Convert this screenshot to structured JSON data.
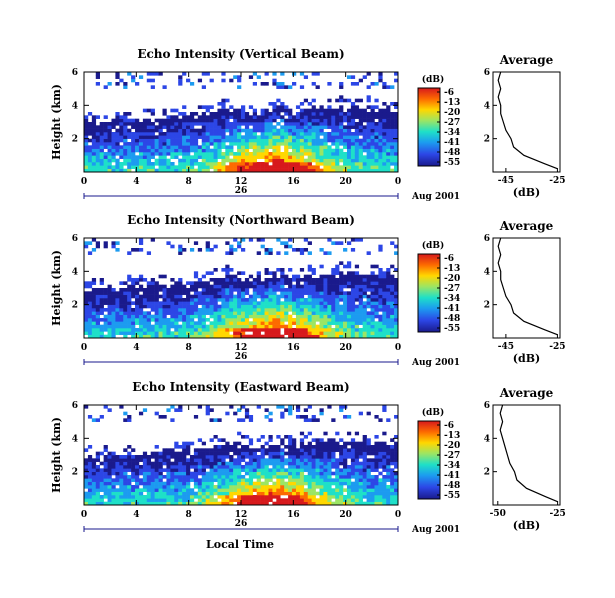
{
  "common": {
    "height_label": "Height (km)",
    "cbar_unit": "(dB)",
    "cbar_ticks": [
      "-6",
      "-13",
      "-20",
      "-27",
      "-34",
      "-41",
      "-48",
      "-55"
    ],
    "time_ticks": [
      "0",
      "4",
      "8",
      "12",
      "16",
      "20",
      "0"
    ],
    "height_ticks": [
      "6",
      "4",
      "2"
    ],
    "date_day": "26",
    "date_label": "Aug 2001",
    "avg_title": "Average",
    "avg_xlabel": "(dB)",
    "avg_yticks": [
      "6",
      "4",
      "2"
    ],
    "xlabel_bottom": "Local Time"
  },
  "chart_data": [
    {
      "type": "heatmap",
      "title": "Echo Intensity (Vertical Beam)",
      "x_range_hours": [
        0,
        24
      ],
      "y_range_km": [
        0,
        6
      ],
      "color_range_db": [
        -55,
        -6
      ],
      "cloud_top_km": [
        3.0,
        3.0,
        3.0,
        3.1,
        3.1,
        3.2,
        3.2,
        3.3,
        3.3,
        3.5,
        3.5,
        3.8,
        3.7,
        3.5,
        3.6,
        3.8,
        3.5,
        3.8,
        3.8,
        3.9,
        3.9,
        3.9,
        3.8,
        3.7,
        3.7
      ],
      "avg_profile": {
        "x_ticks": [
          "-45",
          "-25"
        ],
        "x_range_db": [
          -50,
          -24
        ],
        "height_km": [
          0.2,
          0.5,
          1.0,
          1.5,
          2.0,
          2.5,
          3.0,
          3.5,
          4.0,
          4.5,
          5.0,
          5.5,
          6.0
        ],
        "db": [
          -25,
          -30,
          -38,
          -42,
          -43,
          -45,
          -46,
          -47,
          -47,
          -48,
          -47,
          -48,
          -47
        ]
      }
    },
    {
      "type": "heatmap",
      "title": "Echo Intensity (Northward Beam)",
      "x_range_hours": [
        0,
        24
      ],
      "y_range_km": [
        0,
        6
      ],
      "color_range_db": [
        -55,
        -6
      ],
      "cloud_top_km": [
        2.9,
        3.0,
        3.0,
        3.0,
        3.1,
        3.1,
        3.2,
        3.2,
        3.3,
        3.4,
        3.5,
        3.7,
        3.6,
        3.4,
        3.6,
        3.8,
        3.5,
        3.7,
        3.8,
        3.8,
        3.9,
        3.8,
        3.7,
        3.7,
        3.6
      ],
      "avg_profile": {
        "x_ticks": [
          "-45",
          "-25"
        ],
        "x_range_db": [
          -50,
          -24
        ],
        "height_km": [
          0.2,
          0.5,
          1.0,
          1.5,
          2.0,
          2.5,
          3.0,
          3.5,
          4.0,
          4.5,
          5.0,
          5.5,
          6.0
        ],
        "db": [
          -25,
          -30,
          -38,
          -42,
          -43,
          -45,
          -46,
          -47,
          -47,
          -48,
          -47,
          -48,
          -47
        ]
      }
    },
    {
      "type": "heatmap",
      "title": "Echo Intensity (Eastward Beam)",
      "x_range_hours": [
        0,
        24
      ],
      "y_range_km": [
        0,
        6
      ],
      "color_range_db": [
        -55,
        -6
      ],
      "cloud_top_km": [
        2.8,
        2.9,
        3.0,
        3.0,
        3.0,
        3.1,
        3.1,
        3.2,
        3.3,
        3.4,
        3.5,
        3.6,
        3.6,
        3.4,
        3.5,
        3.7,
        3.5,
        3.7,
        3.8,
        3.8,
        3.8,
        3.8,
        3.7,
        3.6,
        3.5
      ],
      "avg_profile": {
        "x_ticks": [
          "-50",
          "-25"
        ],
        "x_range_db": [
          -52,
          -24
        ],
        "height_km": [
          0.2,
          0.5,
          1.0,
          1.5,
          2.0,
          2.5,
          3.0,
          3.5,
          4.0,
          4.5,
          5.0,
          5.5,
          6.0
        ],
        "db": [
          -25,
          -30,
          -38,
          -42,
          -43,
          -45,
          -46,
          -47,
          -48,
          -49,
          -48,
          -49,
          -48
        ]
      }
    }
  ]
}
